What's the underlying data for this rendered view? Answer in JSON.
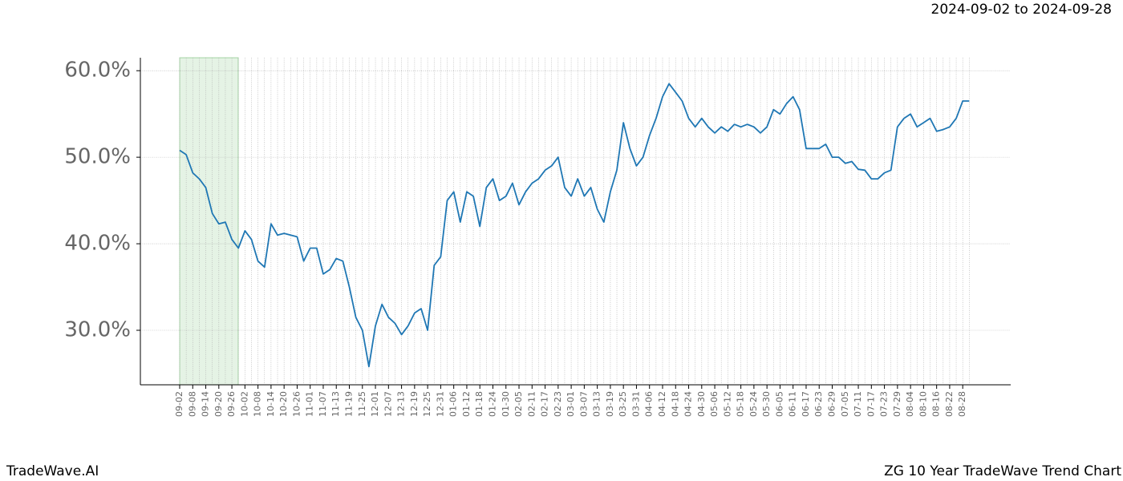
{
  "header": {
    "date_range": "2024-09-02 to 2024-09-28"
  },
  "footer": {
    "brand": "TradeWave.AI",
    "title": "ZG 10 Year TradeWave Trend Chart"
  },
  "chart_data": {
    "type": "line",
    "categories": [
      "09-02",
      null,
      "09-08",
      null,
      "09-14",
      null,
      "09-20",
      null,
      "09-26",
      null,
      "10-02",
      null,
      "10-08",
      null,
      "10-14",
      null,
      "10-20",
      null,
      "10-26",
      null,
      "11-01",
      null,
      "11-07",
      null,
      "11-13",
      null,
      "11-19",
      null,
      "11-25",
      null,
      "12-01",
      null,
      "12-07",
      null,
      "12-13",
      null,
      "12-19",
      null,
      "12-25",
      null,
      "12-31",
      null,
      "01-06",
      null,
      "01-12",
      null,
      "01-18",
      null,
      "01-24",
      null,
      "01-30",
      null,
      "02-05",
      null,
      "02-11",
      null,
      "02-17",
      null,
      "02-23",
      null,
      "03-01",
      null,
      "03-07",
      null,
      "03-13",
      null,
      "03-19",
      null,
      "03-25",
      null,
      "03-31",
      null,
      "04-06",
      null,
      "04-12",
      null,
      "04-18",
      null,
      "04-24",
      null,
      "04-30",
      null,
      "05-06",
      null,
      "05-12",
      null,
      "05-18",
      null,
      "05-24",
      null,
      "05-30",
      null,
      "06-05",
      null,
      "06-11",
      null,
      "06-17",
      null,
      "06-23",
      null,
      "06-29",
      null,
      "07-05",
      null,
      "07-11",
      null,
      "07-17",
      null,
      "07-23",
      null,
      "07-29",
      null,
      "08-04",
      null,
      "08-10",
      null,
      "08-16",
      null,
      "08-22",
      null,
      "08-28",
      null
    ],
    "series": [
      {
        "color": "#1f77b4",
        "values": [
          50.8,
          50.3,
          48.2,
          47.5,
          46.5,
          43.5,
          42.3,
          42.5,
          40.5,
          39.5,
          41.5,
          40.5,
          38.0,
          37.3,
          42.3,
          41.0,
          41.2,
          41.0,
          40.8,
          38.0,
          39.5,
          39.5,
          36.5,
          37.0,
          38.3,
          38.0,
          35.0,
          31.5,
          30.0,
          25.8,
          30.5,
          33.0,
          31.5,
          30.8,
          29.5,
          30.5,
          32.0,
          32.5,
          30.0,
          37.5,
          38.5,
          45.0,
          46.0,
          42.5,
          46.0,
          45.5,
          42.0,
          46.5,
          47.5,
          45.0,
          45.5,
          47.0,
          44.5,
          46.0,
          47.0,
          47.5,
          48.5,
          49.0,
          50.0,
          46.5,
          45.5,
          47.5,
          45.5,
          46.5,
          44.0,
          42.5,
          46.0,
          48.5,
          54.0,
          51.0,
          49.0,
          50.0,
          52.5,
          54.5,
          57.0,
          58.5,
          57.5,
          56.5,
          54.5,
          53.5,
          54.5,
          53.5,
          52.8,
          53.5,
          53.0,
          53.8,
          53.5,
          53.8,
          53.5,
          52.8,
          53.5,
          55.5,
          55.0,
          56.2,
          57.0,
          55.5,
          51.0,
          51.0,
          51.0,
          51.5,
          50.0,
          50.0,
          49.3,
          49.5,
          48.6,
          48.5,
          47.5,
          47.5,
          48.2,
          48.5,
          53.5,
          54.5,
          55.0,
          53.5,
          54.0,
          54.5,
          53.0,
          53.2,
          53.5,
          54.5,
          56.5,
          56.5
        ]
      }
    ],
    "ylim": [
      23.7,
      61.5
    ],
    "yticks": [
      {
        "value": 30,
        "label": "30.0%"
      },
      {
        "value": 40,
        "label": "40.0%"
      },
      {
        "value": 50,
        "label": "50.0%"
      },
      {
        "value": 60,
        "label": "60.0%"
      }
    ],
    "grid": true
  }
}
